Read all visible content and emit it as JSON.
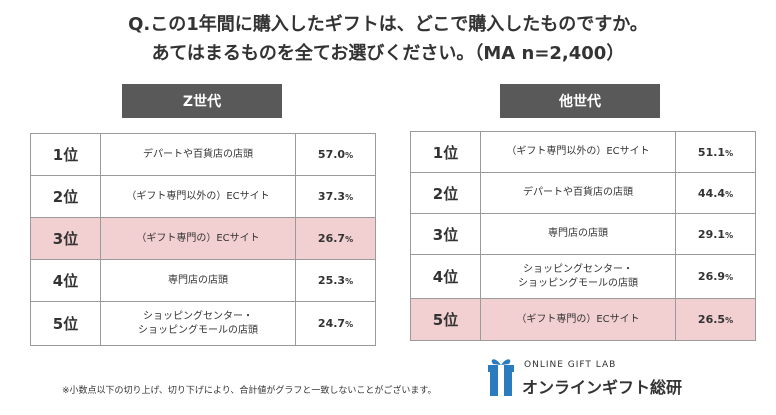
{
  "title_line1": "Q.この1年間に購入したギフトは、どこで購入したものですか。",
  "title_line2": "あてはまるものを全てお選びください。（MA n=2,400）",
  "chart_data": [
    {
      "type": "table",
      "title": "Z世代",
      "rows": [
        {
          "rank": "1位",
          "item": "デパートや百貨店の店頭",
          "value": 57.0,
          "highlight": false
        },
        {
          "rank": "2位",
          "item": "（ギフト専門以外の）ECサイト",
          "value": 37.3,
          "highlight": false
        },
        {
          "rank": "3位",
          "item": "（ギフト専門の）ECサイト",
          "value": 26.7,
          "highlight": true
        },
        {
          "rank": "4位",
          "item": "専門店の店頭",
          "value": 25.3,
          "highlight": false
        },
        {
          "rank": "5位",
          "item": "ショッピングセンター・\nショッピングモールの店頭",
          "value": 24.7,
          "highlight": false
        }
      ]
    },
    {
      "type": "table",
      "title": "他世代",
      "rows": [
        {
          "rank": "1位",
          "item": "（ギフト専門以外の）ECサイト",
          "value": 51.1,
          "highlight": false
        },
        {
          "rank": "2位",
          "item": "デパートや百貨店の店頭",
          "value": 44.4,
          "highlight": false
        },
        {
          "rank": "3位",
          "item": "専門店の店頭",
          "value": 29.1,
          "highlight": false
        },
        {
          "rank": "4位",
          "item": "ショッピングセンター・\nショッピングモールの店頭",
          "value": 26.9,
          "highlight": false
        },
        {
          "rank": "5位",
          "item": "（ギフト専門の）ECサイト",
          "value": 26.5,
          "highlight": true
        }
      ]
    }
  ],
  "unit": "%",
  "highlight_color": "#f2cfd1",
  "header_color": "#595959",
  "footnote": "※小数点以下の切り上げ、切り下げにより、合計値がグラフと一致しないことがございます。",
  "logo": {
    "sub": "ONLINE GIFT LAB",
    "main": "オンラインギフト総研",
    "icon": "gift-box-icon"
  }
}
